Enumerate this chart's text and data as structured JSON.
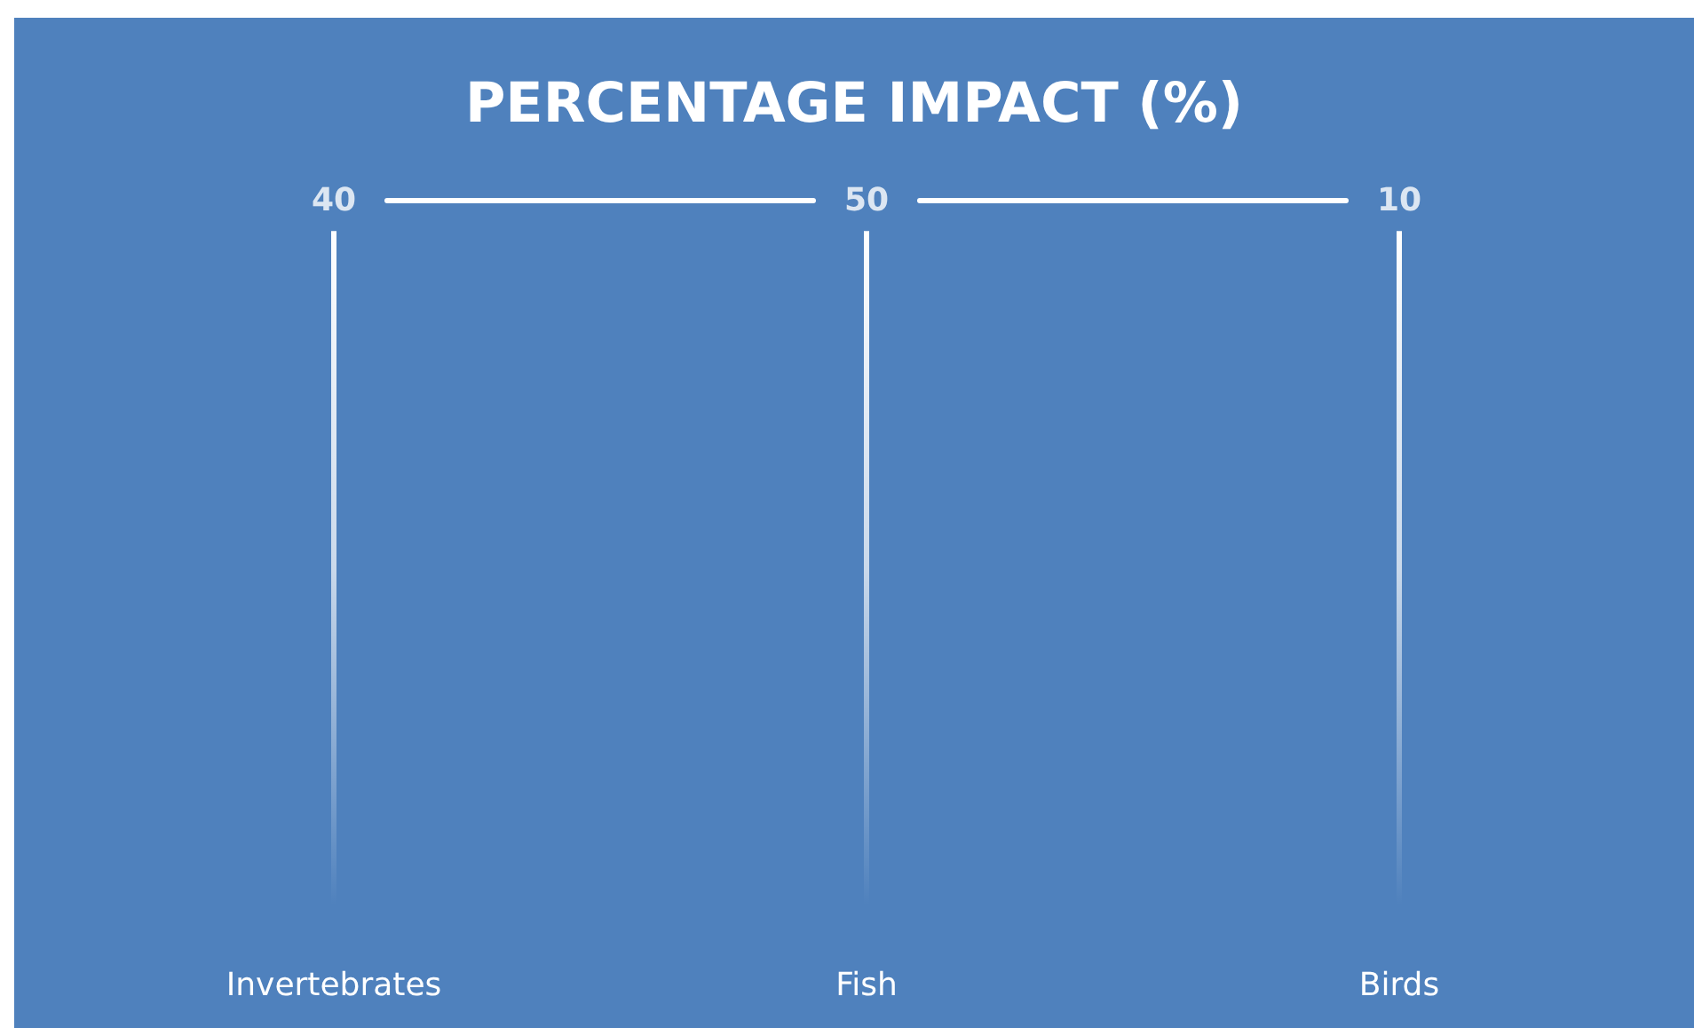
{
  "chart_data": {
    "type": "other",
    "title": "PERCENTAGE IMPACT (%)",
    "categories": [
      "Invertebrates",
      "Fish",
      "Birds"
    ],
    "values": [
      40,
      50,
      10
    ],
    "color": "#ffffff",
    "data_labels": true
  }
}
